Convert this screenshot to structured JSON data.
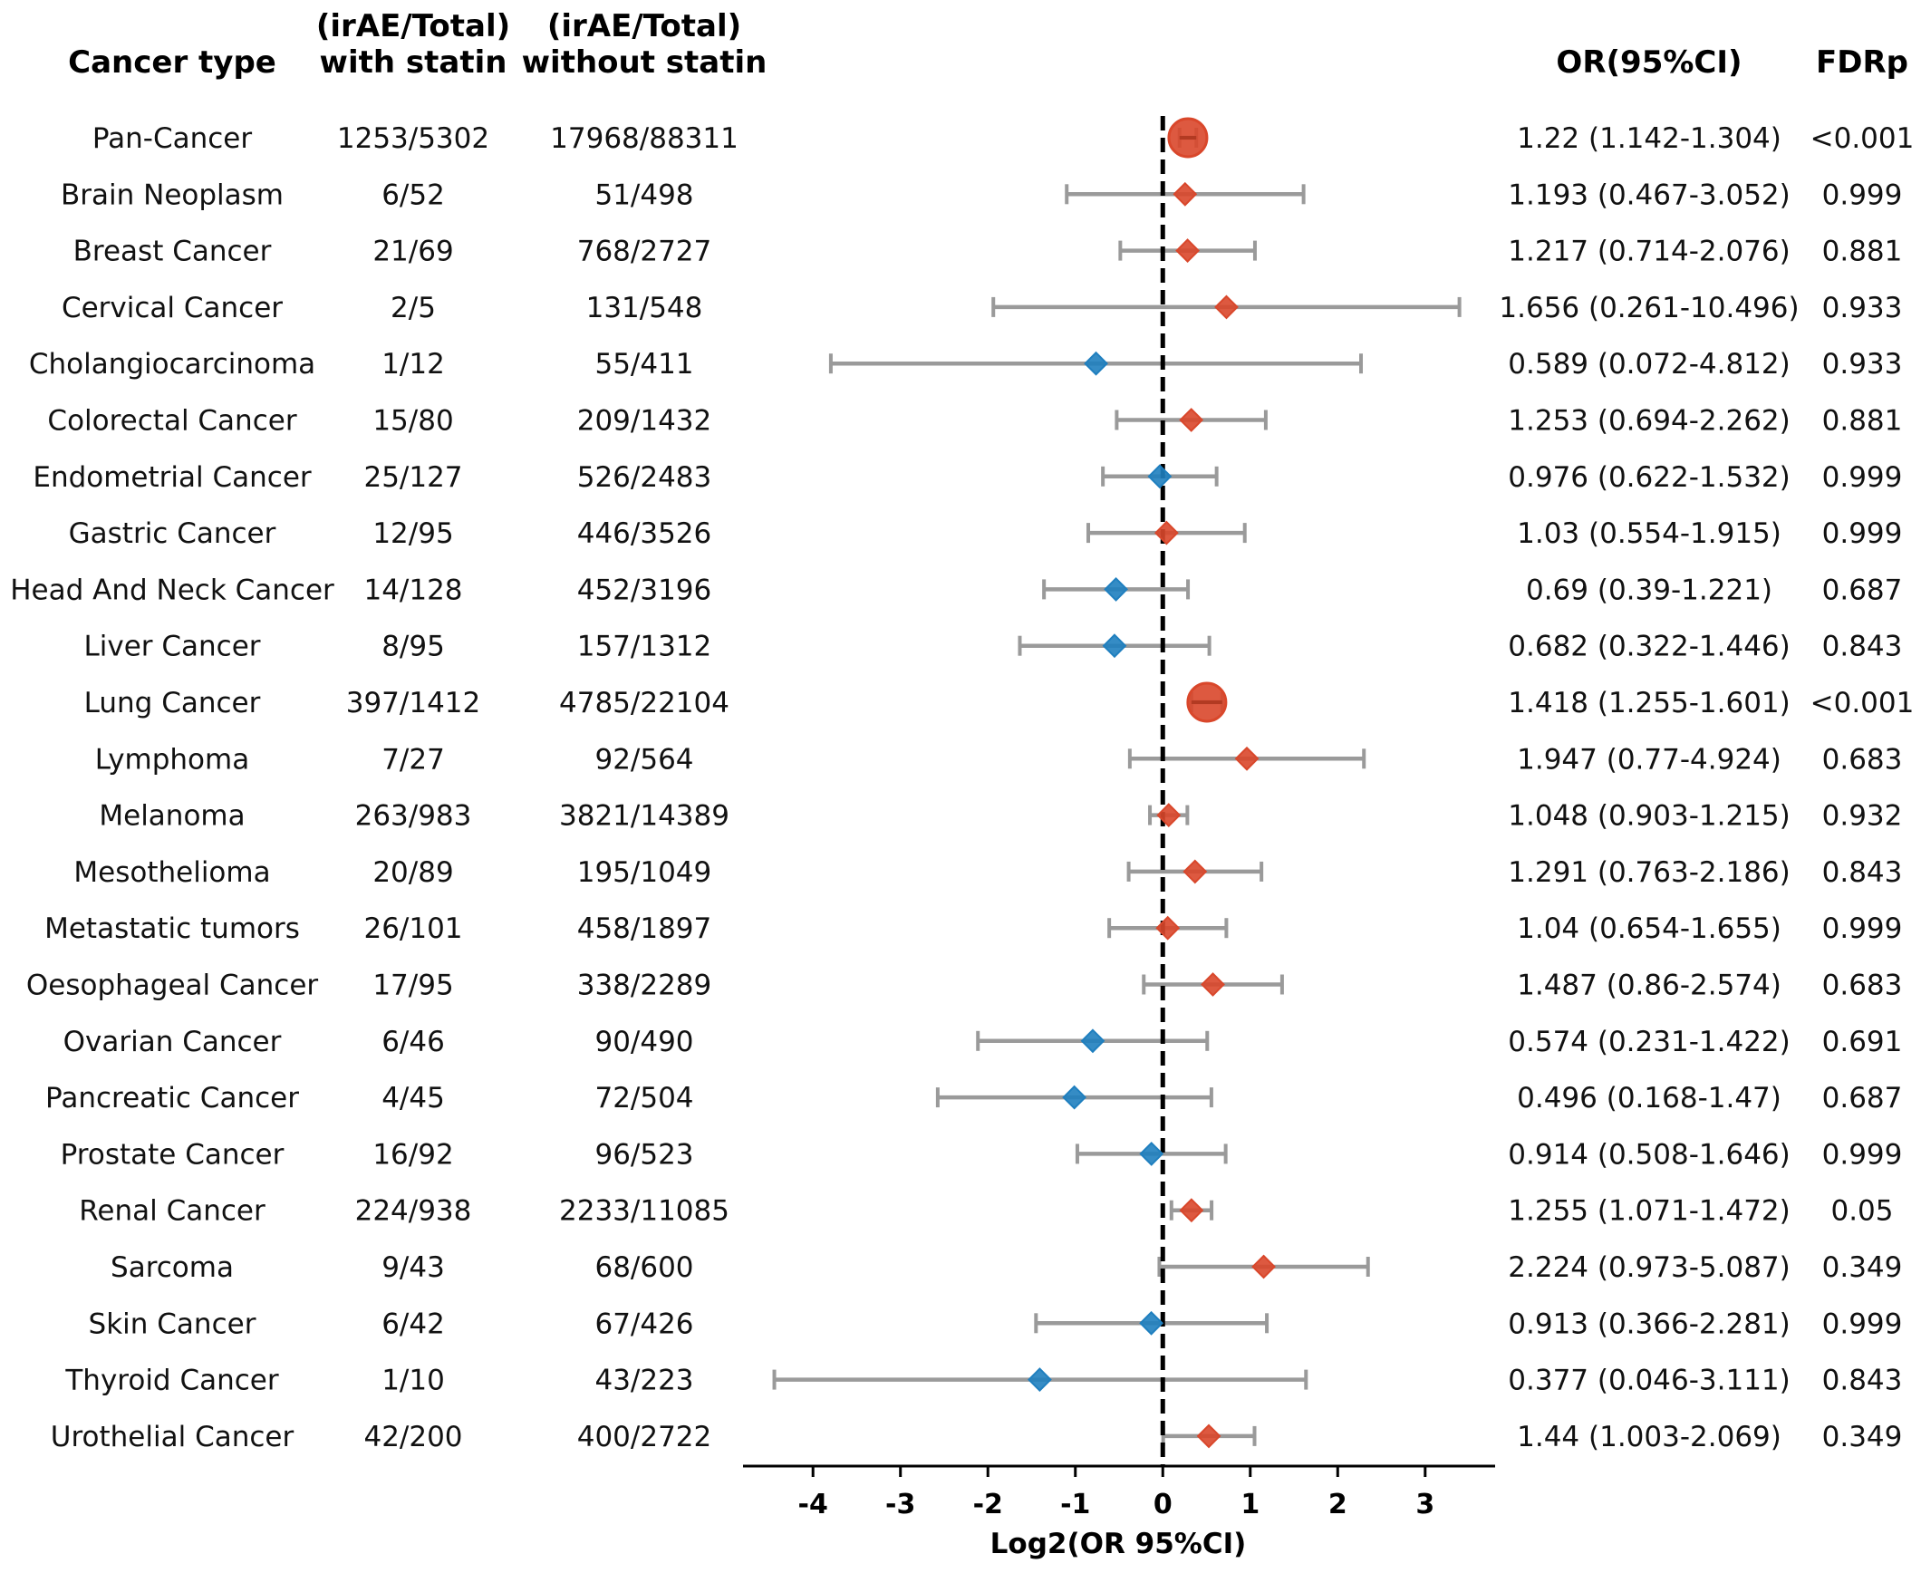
{
  "chart_data": {
    "type": "forest",
    "headers": {
      "cancer_type": "Cancer type",
      "with_statin": [
        "(irAE/Total)",
        "with statin"
      ],
      "without_statin": [
        "(irAE/Total)",
        "without statin"
      ],
      "or_ci": "OR(95%CI)",
      "fdrp": "FDRp"
    },
    "xlabel": "Log2(OR 95%CI)",
    "xlim": [
      -4.8,
      3.8
    ],
    "xticks": [
      -4,
      -3,
      -2,
      -1,
      0,
      1,
      2,
      3
    ],
    "reference_line": 0,
    "colors": {
      "increased": "#d9472b",
      "decreased": "#1f7fbf",
      "ci": "#9a9a9a",
      "axis": "#000000"
    },
    "rows": [
      {
        "name": "Pan-Cancer",
        "with_statin": "1253/5302",
        "without_statin": "17968/88311",
        "or_ci": "1.22 (1.142-1.304)",
        "fdrp": "<0.001",
        "or": 1.22,
        "lo": 1.142,
        "hi": 1.304,
        "significant": true
      },
      {
        "name": "Brain Neoplasm",
        "with_statin": "6/52",
        "without_statin": "51/498",
        "or_ci": "1.193 (0.467-3.052)",
        "fdrp": "0.999",
        "or": 1.193,
        "lo": 0.467,
        "hi": 3.052,
        "significant": false
      },
      {
        "name": "Breast Cancer",
        "with_statin": "21/69",
        "without_statin": "768/2727",
        "or_ci": "1.217 (0.714-2.076)",
        "fdrp": "0.881",
        "or": 1.217,
        "lo": 0.714,
        "hi": 2.076,
        "significant": false
      },
      {
        "name": "Cervical Cancer",
        "with_statin": "2/5",
        "without_statin": "131/548",
        "or_ci": "1.656 (0.261-10.496)",
        "fdrp": "0.933",
        "or": 1.656,
        "lo": 0.261,
        "hi": 10.496,
        "significant": false
      },
      {
        "name": "Cholangiocarcinoma",
        "with_statin": "1/12",
        "without_statin": "55/411",
        "or_ci": "0.589 (0.072-4.812)",
        "fdrp": "0.933",
        "or": 0.589,
        "lo": 0.072,
        "hi": 4.812,
        "significant": false
      },
      {
        "name": "Colorectal Cancer",
        "with_statin": "15/80",
        "without_statin": "209/1432",
        "or_ci": "1.253 (0.694-2.262)",
        "fdrp": "0.881",
        "or": 1.253,
        "lo": 0.694,
        "hi": 2.262,
        "significant": false
      },
      {
        "name": "Endometrial Cancer",
        "with_statin": "25/127",
        "without_statin": "526/2483",
        "or_ci": "0.976 (0.622-1.532)",
        "fdrp": "0.999",
        "or": 0.976,
        "lo": 0.622,
        "hi": 1.532,
        "significant": false
      },
      {
        "name": "Gastric Cancer",
        "with_statin": "12/95",
        "without_statin": "446/3526",
        "or_ci": "1.03 (0.554-1.915)",
        "fdrp": "0.999",
        "or": 1.03,
        "lo": 0.554,
        "hi": 1.915,
        "significant": false
      },
      {
        "name": "Head And Neck Cancer",
        "with_statin": "14/128",
        "without_statin": "452/3196",
        "or_ci": "0.69 (0.39-1.221)",
        "fdrp": "0.687",
        "or": 0.69,
        "lo": 0.39,
        "hi": 1.221,
        "significant": false
      },
      {
        "name": "Liver Cancer",
        "with_statin": "8/95",
        "without_statin": "157/1312",
        "or_ci": "0.682 (0.322-1.446)",
        "fdrp": "0.843",
        "or": 0.682,
        "lo": 0.322,
        "hi": 1.446,
        "significant": false
      },
      {
        "name": "Lung Cancer",
        "with_statin": "397/1412",
        "without_statin": "4785/22104",
        "or_ci": "1.418 (1.255-1.601)",
        "fdrp": "<0.001",
        "or": 1.418,
        "lo": 1.255,
        "hi": 1.601,
        "significant": true
      },
      {
        "name": "Lymphoma",
        "with_statin": "7/27",
        "without_statin": "92/564",
        "or_ci": "1.947 (0.77-4.924)",
        "fdrp": "0.683",
        "or": 1.947,
        "lo": 0.77,
        "hi": 4.924,
        "significant": false
      },
      {
        "name": "Melanoma",
        "with_statin": "263/983",
        "without_statin": "3821/14389",
        "or_ci": "1.048 (0.903-1.215)",
        "fdrp": "0.932",
        "or": 1.048,
        "lo": 0.903,
        "hi": 1.215,
        "significant": false
      },
      {
        "name": "Mesothelioma",
        "with_statin": "20/89",
        "without_statin": "195/1049",
        "or_ci": "1.291 (0.763-2.186)",
        "fdrp": "0.843",
        "or": 1.291,
        "lo": 0.763,
        "hi": 2.186,
        "significant": false
      },
      {
        "name": "Metastatic tumors",
        "with_statin": "26/101",
        "without_statin": "458/1897",
        "or_ci": "1.04 (0.654-1.655)",
        "fdrp": "0.999",
        "or": 1.04,
        "lo": 0.654,
        "hi": 1.655,
        "significant": false
      },
      {
        "name": "Oesophageal Cancer",
        "with_statin": "17/95",
        "without_statin": "338/2289",
        "or_ci": "1.487 (0.86-2.574)",
        "fdrp": "0.683",
        "or": 1.487,
        "lo": 0.86,
        "hi": 2.574,
        "significant": false
      },
      {
        "name": "Ovarian Cancer",
        "with_statin": "6/46",
        "without_statin": "90/490",
        "or_ci": "0.574 (0.231-1.422)",
        "fdrp": "0.691",
        "or": 0.574,
        "lo": 0.231,
        "hi": 1.422,
        "significant": false
      },
      {
        "name": "Pancreatic Cancer",
        "with_statin": "4/45",
        "without_statin": "72/504",
        "or_ci": "0.496 (0.168-1.47)",
        "fdrp": "0.687",
        "or": 0.496,
        "lo": 0.168,
        "hi": 1.47,
        "significant": false
      },
      {
        "name": "Prostate Cancer",
        "with_statin": "16/92",
        "without_statin": "96/523",
        "or_ci": "0.914 (0.508-1.646)",
        "fdrp": "0.999",
        "or": 0.914,
        "lo": 0.508,
        "hi": 1.646,
        "significant": false
      },
      {
        "name": "Renal Cancer",
        "with_statin": "224/938",
        "without_statin": "2233/11085",
        "or_ci": "1.255 (1.071-1.472)",
        "fdrp": "0.05",
        "or": 1.255,
        "lo": 1.071,
        "hi": 1.472,
        "significant": false
      },
      {
        "name": "Sarcoma",
        "with_statin": "9/43",
        "without_statin": "68/600",
        "or_ci": "2.224 (0.973-5.087)",
        "fdrp": "0.349",
        "or": 2.224,
        "lo": 0.973,
        "hi": 5.087,
        "significant": false
      },
      {
        "name": "Skin Cancer",
        "with_statin": "6/42",
        "without_statin": "67/426",
        "or_ci": "0.913 (0.366-2.281)",
        "fdrp": "0.999",
        "or": 0.913,
        "lo": 0.366,
        "hi": 2.281,
        "significant": false
      },
      {
        "name": "Thyroid Cancer",
        "with_statin": "1/10",
        "without_statin": "43/223",
        "or_ci": "0.377 (0.046-3.111)",
        "fdrp": "0.843",
        "or": 0.377,
        "lo": 0.046,
        "hi": 3.111,
        "significant": false
      },
      {
        "name": "Urothelial Cancer",
        "with_statin": "42/200",
        "without_statin": "400/2722",
        "or_ci": "1.44 (1.003-2.069)",
        "fdrp": "0.349",
        "or": 1.44,
        "lo": 1.003,
        "hi": 2.069,
        "significant": false
      }
    ]
  }
}
